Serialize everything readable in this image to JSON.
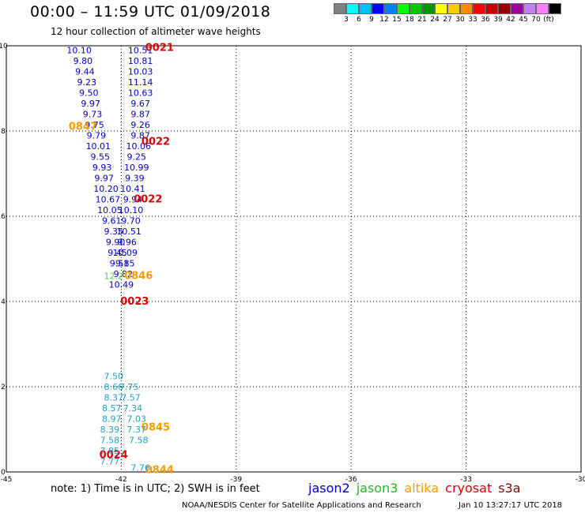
{
  "title": "00:00 – 11:59 UTC 01/09/2018",
  "subtitle": "12 hour collection of altimeter wave heights",
  "note": "note: 1) Time is in UTC; 2) SWH is in feet",
  "credit": "NOAA/NESDIS Center for Satellite Applications and Research",
  "stamp": "Jan 10 13:27:17 UTC 2018",
  "color_scale": {
    "colors": [
      "#808080",
      "#00ffff",
      "#00bfff",
      "#0000ff",
      "#0080ff",
      "#00ff00",
      "#00c800",
      "#009600",
      "#ffff00",
      "#ffc800",
      "#ff8c00",
      "#ff0000",
      "#c80000",
      "#960000",
      "#a000a0",
      "#c080ff",
      "#ff80ff",
      "#000000"
    ],
    "labels": [
      "3",
      "6",
      "9",
      "12",
      "15",
      "18",
      "21",
      "24",
      "27",
      "30",
      "33",
      "36",
      "39",
      "42",
      "45",
      "70",
      "(ft)"
    ]
  },
  "legend": [
    {
      "name": "jason2",
      "color": "#0000cc"
    },
    {
      "name": "jason3",
      "color": "#22bb22"
    },
    {
      "name": "altika",
      "color": "#ff9900"
    },
    {
      "name": "cryosat",
      "color": "#dd0000"
    },
    {
      "name": "s3a",
      "color": "#880000"
    }
  ],
  "chart_data": {
    "type": "scatter",
    "xlim": [
      -45,
      -30
    ],
    "ylim": [
      0,
      10
    ],
    "xticks": [
      "-45",
      "-42",
      "-39",
      "-36",
      "-33",
      "-30"
    ],
    "yticks": [
      "0",
      "2",
      "4",
      "6",
      "8",
      "10"
    ],
    "grid": true,
    "series": [
      {
        "name": "jason2",
        "color": "#0000cc",
        "points": [
          {
            "x": -43.1,
            "y": 9.9,
            "text": "10.10"
          },
          {
            "x": -43.0,
            "y": 9.65,
            "text": "9.80"
          },
          {
            "x": -42.95,
            "y": 9.4,
            "text": "9.44"
          },
          {
            "x": -42.9,
            "y": 9.15,
            "text": "9.23"
          },
          {
            "x": -42.85,
            "y": 8.9,
            "text": "9.50"
          },
          {
            "x": -42.8,
            "y": 8.65,
            "text": "9.97"
          },
          {
            "x": -42.75,
            "y": 8.4,
            "text": "9.73"
          },
          {
            "x": -42.7,
            "y": 8.15,
            "text": "9.75"
          },
          {
            "x": -42.65,
            "y": 7.9,
            "text": "9.79"
          },
          {
            "x": -42.6,
            "y": 7.65,
            "text": "10.01"
          },
          {
            "x": -42.55,
            "y": 7.4,
            "text": "9.55"
          },
          {
            "x": -42.5,
            "y": 7.15,
            "text": "9.93"
          },
          {
            "x": -42.45,
            "y": 6.9,
            "text": "9.97"
          },
          {
            "x": -42.4,
            "y": 6.65,
            "text": "10.20"
          },
          {
            "x": -42.35,
            "y": 6.4,
            "text": "10.67"
          },
          {
            "x": -42.3,
            "y": 6.15,
            "text": "10.05"
          },
          {
            "x": -42.25,
            "y": 5.9,
            "text": "9.61"
          },
          {
            "x": -42.2,
            "y": 5.65,
            "text": "9.35"
          },
          {
            "x": -42.15,
            "y": 5.4,
            "text": "9.90"
          },
          {
            "x": -42.1,
            "y": 5.15,
            "text": "9.45"
          },
          {
            "x": -42.05,
            "y": 4.9,
            "text": "9.51"
          },
          {
            "x": -41.5,
            "y": 9.9,
            "text": "10.51"
          },
          {
            "x": -41.5,
            "y": 9.65,
            "text": "10.81"
          },
          {
            "x": -41.5,
            "y": 9.4,
            "text": "10.03"
          },
          {
            "x": -41.5,
            "y": 9.15,
            "text": "11.14"
          },
          {
            "x": -41.5,
            "y": 8.9,
            "text": "10.63"
          },
          {
            "x": -41.5,
            "y": 8.65,
            "text": "9.67"
          },
          {
            "x": -41.5,
            "y": 8.4,
            "text": "9.87"
          },
          {
            "x": -41.5,
            "y": 8.15,
            "text": "9.26"
          },
          {
            "x": -41.5,
            "y": 7.9,
            "text": "9.87"
          },
          {
            "x": -41.55,
            "y": 7.65,
            "text": "10.06"
          },
          {
            "x": -41.6,
            "y": 7.4,
            "text": "9.25"
          },
          {
            "x": -41.6,
            "y": 7.15,
            "text": "10.99"
          },
          {
            "x": -41.65,
            "y": 6.9,
            "text": "9.39"
          },
          {
            "x": -41.7,
            "y": 6.65,
            "text": "10.41"
          },
          {
            "x": -41.7,
            "y": 6.4,
            "text": "9.94"
          },
          {
            "x": -41.75,
            "y": 6.15,
            "text": "10.10"
          },
          {
            "x": -41.75,
            "y": 5.9,
            "text": "9.70"
          },
          {
            "x": -41.8,
            "y": 5.65,
            "text": "10.51"
          },
          {
            "x": -41.85,
            "y": 5.4,
            "text": "9.96"
          },
          {
            "x": -41.9,
            "y": 5.15,
            "text": "10.09"
          },
          {
            "x": -41.9,
            "y": 4.9,
            "text": "9.85"
          },
          {
            "x": -41.95,
            "y": 4.65,
            "text": "9.82"
          },
          {
            "x": -42.0,
            "y": 4.4,
            "text": "10.49"
          }
        ]
      },
      {
        "name": "jason3",
        "color": "#55cc55",
        "points": [
          {
            "x": -42.2,
            "y": 4.6,
            "text": "12.2"
          }
        ]
      },
      {
        "name": "altika",
        "color": "#ff9900",
        "points": [
          {
            "x": -43.0,
            "y": 8.1,
            "text": "0847"
          },
          {
            "x": -41.55,
            "y": 4.6,
            "text": "0846"
          },
          {
            "x": -41.1,
            "y": 1.05,
            "text": "0845"
          },
          {
            "x": -41.0,
            "y": 0.05,
            "text": "0844"
          }
        ]
      },
      {
        "name": "cryosat",
        "color": "#dd0000",
        "points": [
          {
            "x": -41.0,
            "y": 9.95,
            "text": "0021"
          },
          {
            "x": -41.1,
            "y": 7.75,
            "text": "0022"
          },
          {
            "x": -41.3,
            "y": 6.4,
            "text": "0022"
          },
          {
            "x": -41.65,
            "y": 4.0,
            "text": "0023"
          },
          {
            "x": -42.2,
            "y": 0.4,
            "text": "0024"
          }
        ]
      },
      {
        "name": "s3a",
        "color": "#22a0cc",
        "points": [
          {
            "x": -42.2,
            "y": 2.25,
            "text": "7.50"
          },
          {
            "x": -42.2,
            "y": 2.0,
            "text": "8.66"
          },
          {
            "x": -42.2,
            "y": 1.75,
            "text": "8.37"
          },
          {
            "x": -42.25,
            "y": 1.5,
            "text": "8.57"
          },
          {
            "x": -42.25,
            "y": 1.25,
            "text": "8.97"
          },
          {
            "x": -42.3,
            "y": 1.0,
            "text": "8.39"
          },
          {
            "x": -42.3,
            "y": 0.75,
            "text": "7.58"
          },
          {
            "x": -42.3,
            "y": 0.5,
            "text": "7.85"
          },
          {
            "x": -42.3,
            "y": 0.25,
            "text": "7.77"
          },
          {
            "x": -41.8,
            "y": 2.0,
            "text": "7.75"
          },
          {
            "x": -41.75,
            "y": 1.75,
            "text": "7.57"
          },
          {
            "x": -41.7,
            "y": 1.5,
            "text": "7.34"
          },
          {
            "x": -41.6,
            "y": 1.25,
            "text": "7.03"
          },
          {
            "x": -41.6,
            "y": 1.0,
            "text": "7.37"
          },
          {
            "x": -41.55,
            "y": 0.75,
            "text": "7.58"
          },
          {
            "x": -41.5,
            "y": 0.1,
            "text": "7.76"
          }
        ]
      }
    ]
  }
}
